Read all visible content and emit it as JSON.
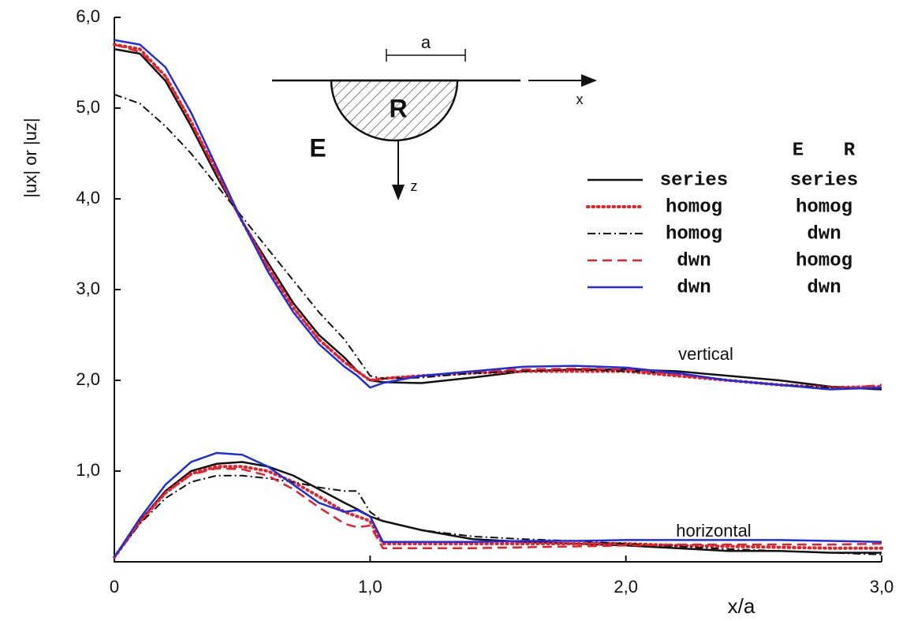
{
  "chart_data": {
    "type": "line",
    "xlabel": "x/a",
    "ylabel": "|ux| or |uz|",
    "xlim": [
      0,
      3
    ],
    "ylim": [
      0,
      6
    ],
    "xticks": [
      {
        "value": 0,
        "label": "0"
      },
      {
        "value": 1,
        "label": "1,0"
      },
      {
        "value": 2,
        "label": "2,0"
      },
      {
        "value": 3,
        "label": "3,0"
      }
    ],
    "yticks": [
      {
        "value": 1,
        "label": "1,0"
      },
      {
        "value": 2,
        "label": "2,0"
      },
      {
        "value": 3,
        "label": "3,0"
      },
      {
        "value": 4,
        "label": "4,0"
      },
      {
        "value": 5,
        "label": "5,0"
      },
      {
        "value": 6,
        "label": "6,0"
      }
    ],
    "legend_header": [
      "E",
      "R"
    ],
    "groups": [
      "vertical",
      "horizontal"
    ],
    "x": [
      0,
      0.1,
      0.2,
      0.3,
      0.4,
      0.5,
      0.6,
      0.7,
      0.8,
      0.9,
      0.95,
      1.0,
      1.05,
      1.2,
      1.4,
      1.6,
      1.8,
      2.0,
      2.2,
      2.4,
      2.6,
      2.8,
      3.0
    ],
    "series": [
      {
        "name": [
          "series",
          "series"
        ],
        "color": "#111111",
        "dash": "solid",
        "values": [
          [
            5.65,
            5.6,
            5.3,
            4.8,
            4.25,
            3.75,
            3.3,
            2.85,
            2.5,
            2.25,
            2.1,
            2.0,
            1.98,
            1.97,
            2.03,
            2.1,
            2.12,
            2.12,
            2.1,
            2.05,
            2.0,
            1.93,
            1.9
          ],
          [
            0.05,
            0.45,
            0.78,
            1.0,
            1.08,
            1.1,
            1.05,
            0.95,
            0.8,
            0.65,
            0.58,
            0.5,
            0.45,
            0.35,
            0.25,
            0.22,
            0.2,
            0.18,
            0.15,
            0.12,
            0.12,
            0.1,
            0.1
          ]
        ]
      },
      {
        "name": [
          "homog",
          "homog"
        ],
        "color": "#e8202a",
        "dash": "dotted",
        "values": [
          [
            5.7,
            5.65,
            5.35,
            4.85,
            4.3,
            3.75,
            3.25,
            2.8,
            2.45,
            2.2,
            2.1,
            2.0,
            2.02,
            2.05,
            2.08,
            2.1,
            2.1,
            2.1,
            2.05,
            2.0,
            1.95,
            1.92,
            1.93
          ],
          [
            0.05,
            0.44,
            0.76,
            0.97,
            1.05,
            1.05,
            1.0,
            0.88,
            0.72,
            0.55,
            0.5,
            0.45,
            0.2,
            0.2,
            0.2,
            0.2,
            0.2,
            0.2,
            0.18,
            0.17,
            0.16,
            0.15,
            0.15
          ]
        ]
      },
      {
        "name": [
          "homog",
          "dwn"
        ],
        "color": "#111111",
        "dash": "dashdot",
        "values": [
          [
            5.15,
            5.05,
            4.8,
            4.5,
            4.15,
            3.8,
            3.45,
            3.1,
            2.75,
            2.45,
            2.25,
            2.05,
            2.02,
            2.03,
            2.08,
            2.1,
            2.12,
            2.1,
            2.08,
            2.0,
            1.95,
            1.92,
            1.9
          ],
          [
            0.05,
            0.42,
            0.7,
            0.88,
            0.95,
            0.95,
            0.92,
            0.88,
            0.82,
            0.78,
            0.78,
            0.55,
            0.45,
            0.35,
            0.28,
            0.25,
            0.23,
            0.2,
            0.17,
            0.14,
            0.12,
            0.1,
            0.08
          ]
        ]
      },
      {
        "name": [
          "dwn",
          "homog"
        ],
        "color": "#e8202a",
        "dash": "dashed",
        "values": [
          [
            5.7,
            5.62,
            5.35,
            4.85,
            4.3,
            3.75,
            3.25,
            2.8,
            2.45,
            2.2,
            2.1,
            2.0,
            2.02,
            2.05,
            2.1,
            2.12,
            2.13,
            2.12,
            2.06,
            2.0,
            1.95,
            1.9,
            1.95
          ],
          [
            0.05,
            0.44,
            0.76,
            0.96,
            1.03,
            1.02,
            0.95,
            0.8,
            0.6,
            0.42,
            0.38,
            0.4,
            0.15,
            0.15,
            0.15,
            0.16,
            0.17,
            0.18,
            0.19,
            0.19,
            0.19,
            0.19,
            0.2
          ]
        ]
      },
      {
        "name": [
          "dwn",
          "dwn"
        ],
        "color": "#1a2ee8",
        "dash": "solid",
        "values": [
          [
            5.75,
            5.7,
            5.45,
            4.95,
            4.35,
            3.75,
            3.2,
            2.75,
            2.4,
            2.15,
            2.05,
            1.92,
            1.97,
            2.05,
            2.1,
            2.15,
            2.16,
            2.14,
            2.08,
            2.0,
            1.95,
            1.9,
            1.92
          ],
          [
            0.05,
            0.48,
            0.85,
            1.1,
            1.2,
            1.18,
            1.05,
            0.85,
            0.65,
            0.55,
            0.57,
            0.5,
            0.22,
            0.22,
            0.22,
            0.23,
            0.23,
            0.24,
            0.24,
            0.24,
            0.24,
            0.23,
            0.22
          ]
        ]
      }
    ],
    "inset": {
      "width_label": "a",
      "inner_label": "R",
      "outer_label": "E",
      "x_axis": "x",
      "z_axis": "z"
    }
  }
}
